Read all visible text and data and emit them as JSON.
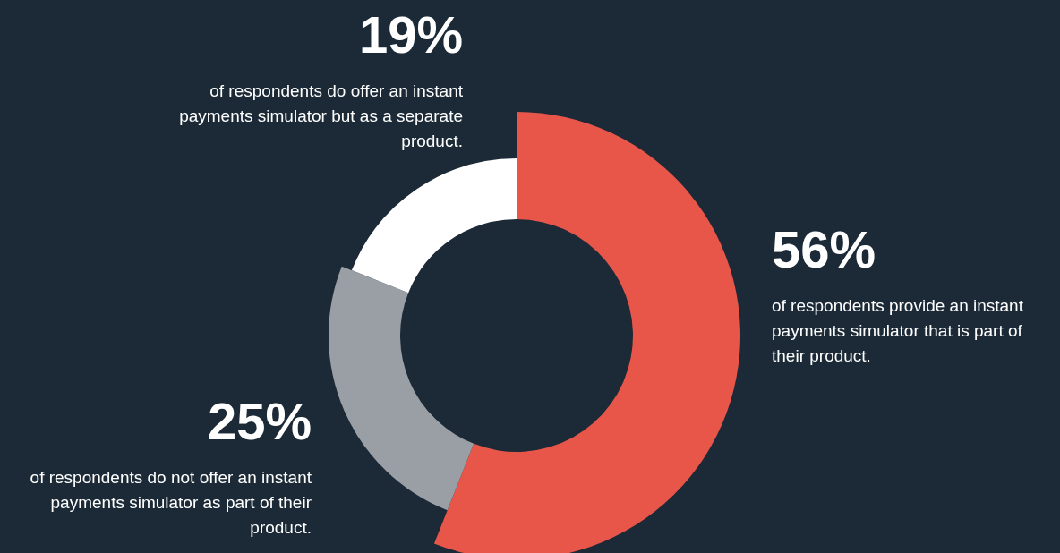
{
  "chart_data": {
    "type": "donut",
    "categories": [
      "of respondents provide an instant payments simulator that is part of their product.",
      "of respondents do not offer an instant payments simulator as part of their product.",
      "of respondents do offer an instant payments simulator but as a separate product."
    ],
    "values": [
      56,
      25,
      19
    ],
    "colors": [
      "#e8564a",
      "#9a9fa6",
      "#ffffff"
    ],
    "value_labels": [
      "56%",
      "25%",
      "19%"
    ],
    "legend": false
  }
}
